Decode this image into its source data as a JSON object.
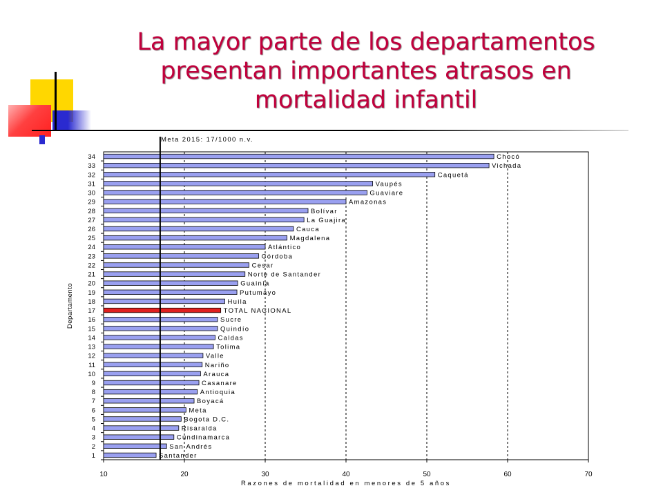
{
  "slide": {
    "title_lines": [
      "La mayor parte de los departamentos",
      "presentan importantes atrasos en",
      "mortalidad infantil"
    ]
  },
  "colors": {
    "title": "#c0003c",
    "bar": "#9aa0f0",
    "highlight_bar": "#e02020",
    "deco_yellow": "#ffd700",
    "deco_blue": "#2a2ad0",
    "deco_red": "#ff4040"
  },
  "chart_data": {
    "type": "bar",
    "orientation": "horizontal",
    "annotation": "Meta 2015: 17/1000 n.v.",
    "meta_value": 17,
    "xlabel": "Razones de mortalidad en menores de 5 años",
    "ylabel": "Departamento",
    "xlim": [
      10,
      70
    ],
    "xticks": [
      10,
      20,
      30,
      40,
      50,
      60,
      70
    ],
    "grid": "vertical dashed",
    "highlight_category": "17",
    "categories": [
      "1",
      "2",
      "3",
      "4",
      "5",
      "6",
      "7",
      "8",
      "9",
      "10",
      "11",
      "12",
      "13",
      "14",
      "15",
      "16",
      "17",
      "18",
      "19",
      "20",
      "21",
      "22",
      "23",
      "24",
      "25",
      "26",
      "27",
      "28",
      "29",
      "30",
      "31",
      "32",
      "33",
      "34"
    ],
    "labels": [
      "Santander",
      "San Andrés",
      "Cundinamarca",
      "Risaralda",
      "Bogota D.C.",
      "Meta",
      "Boyacá",
      "Antioquia",
      "Casanare",
      "Arauca",
      "Nariño",
      "Valle",
      "Tolima",
      "Caldas",
      "Quindío",
      "Sucre",
      "TOTAL NACIONAL",
      "Huila",
      "Putumayo",
      "Guainía",
      "Norte de Santander",
      "Cesar",
      "Córdoba",
      "Atlántico",
      "Magdalena",
      "Cauca",
      "La Guajira",
      "Bolívar",
      "Amazonas",
      "Guaviare",
      "Vaupés",
      "Caquetá",
      "Vichada",
      "Chocó"
    ],
    "values": [
      16.5,
      17.8,
      18.7,
      19.3,
      19.6,
      20.2,
      21.2,
      21.6,
      21.8,
      22.0,
      22.2,
      22.3,
      23.6,
      23.8,
      24.1,
      24.1,
      24.5,
      25.0,
      26.5,
      26.6,
      27.5,
      28.0,
      29.2,
      30.0,
      32.7,
      33.5,
      34.8,
      35.3,
      40.0,
      42.6,
      43.3,
      51.0,
      57.7,
      58.3
    ]
  }
}
